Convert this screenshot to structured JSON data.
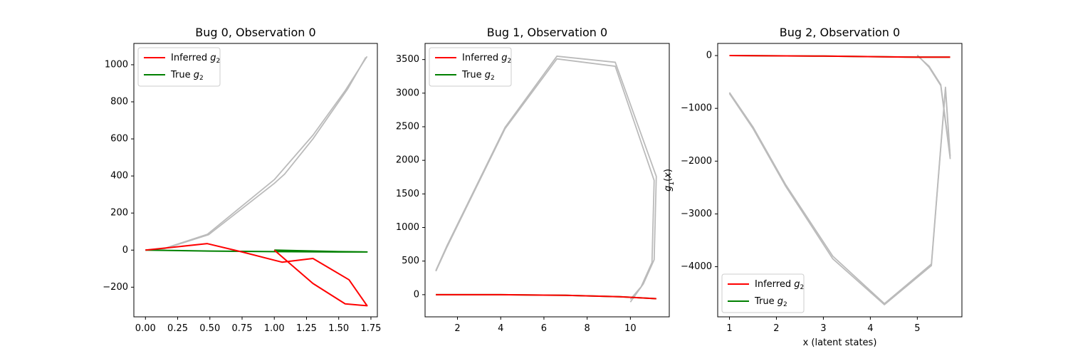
{
  "chart_data": [
    {
      "type": "line",
      "title": "Bug 0, Observation 0",
      "xlabel": "",
      "ylabel": "",
      "xlim": [
        -0.09,
        1.8
      ],
      "ylim": [
        -360,
        1115
      ],
      "xticks": [
        0.0,
        0.25,
        0.5,
        0.75,
        1.0,
        1.25,
        1.5,
        1.75
      ],
      "xtick_labels": [
        "0.00",
        "0.25",
        "0.50",
        "0.75",
        "1.00",
        "1.25",
        "1.50",
        "1.75"
      ],
      "yticks": [
        -200,
        0,
        200,
        400,
        600,
        800,
        1000
      ],
      "ytick_labels": [
        "−200",
        "0",
        "200",
        "400",
        "600",
        "800",
        "1000"
      ],
      "legend": {
        "loc": "upper left",
        "labels": [
          "Inferred g2",
          "True g2"
        ]
      },
      "grid": false,
      "series": [
        {
          "name": "Inferred g2",
          "color": "#ff0000",
          "x": [
            0.0,
            0.48,
            0.75,
            1.06,
            1.3,
            1.58,
            1.72,
            1.55,
            1.3,
            1.0
          ],
          "y": [
            0,
            35,
            -10,
            -65,
            -45,
            -160,
            -300,
            -290,
            -180,
            0
          ]
        },
        {
          "name": "True g2",
          "color": "#008000",
          "x": [
            0.0,
            0.5,
            1.0,
            1.5,
            1.72,
            1.5,
            1.0
          ],
          "y": [
            0,
            -5,
            -8,
            -10,
            -10,
            -8,
            0
          ]
        },
        {
          "name": "",
          "color": "#bbbbbb",
          "x": [
            0.0,
            0.15,
            0.48,
            1.0,
            1.3,
            1.55,
            1.72
          ],
          "y": [
            0,
            10,
            85,
            380,
            620,
            860,
            1045
          ]
        },
        {
          "name": "",
          "color": "#bbbbbb",
          "x": [
            0.0,
            0.15,
            0.49,
            1.0,
            1.08,
            1.3,
            1.57,
            1.71
          ],
          "y": [
            0,
            8,
            83,
            360,
            410,
            600,
            870,
            1040
          ]
        }
      ]
    },
    {
      "type": "line",
      "title": "Bug 1, Observation 0",
      "xlabel": "",
      "ylabel": "",
      "xlim": [
        0.5,
        11.8
      ],
      "ylim": [
        -330,
        3740
      ],
      "xticks": [
        2,
        4,
        6,
        8,
        10
      ],
      "xtick_labels": [
        "2",
        "4",
        "6",
        "8",
        "10"
      ],
      "yticks": [
        0,
        500,
        1000,
        1500,
        2000,
        2500,
        3000,
        3500
      ],
      "ytick_labels": [
        "0",
        "500",
        "1000",
        "1500",
        "2000",
        "2500",
        "3000",
        "3500"
      ],
      "legend": {
        "loc": "upper left",
        "labels": [
          "Inferred g2",
          "True g2"
        ]
      },
      "grid": false,
      "series": [
        {
          "name": "Inferred g2",
          "color": "#ff0000",
          "x": [
            1.0,
            4.0,
            7.0,
            9.5,
            11.2
          ],
          "y": [
            0,
            0,
            -10,
            -30,
            -60
          ]
        },
        {
          "name": "True g2",
          "color": "#008000",
          "x": [
            1.0,
            4.0,
            7.0,
            9.5,
            11.2
          ],
          "y": [
            0,
            0,
            -10,
            -30,
            -60
          ]
        },
        {
          "name": "",
          "color": "#bbbbbb",
          "x": [
            1.0,
            1.5,
            4.2,
            6.6,
            9.3,
            11.2,
            11.1,
            10.6,
            10.0
          ],
          "y": [
            360,
            720,
            2490,
            3550,
            3460,
            1760,
            520,
            160,
            -110
          ]
        },
        {
          "name": "",
          "color": "#bbbbbb",
          "x": [
            1.0,
            1.5,
            4.2,
            6.6,
            9.3,
            11.1,
            11.0,
            10.5,
            10.0
          ],
          "y": [
            350,
            700,
            2470,
            3510,
            3400,
            1700,
            480,
            120,
            -70
          ]
        }
      ]
    },
    {
      "type": "line",
      "title": "Bug 2, Observation 0",
      "xlabel": "x (latent states)",
      "ylabel": "g1(x)",
      "xlim": [
        0.75,
        5.95
      ],
      "ylim": [
        -4950,
        230
      ],
      "xticks": [
        1,
        2,
        3,
        4,
        5
      ],
      "xtick_labels": [
        "1",
        "2",
        "3",
        "4",
        "5"
      ],
      "yticks": [
        -4000,
        -3000,
        -2000,
        -1000,
        0
      ],
      "ytick_labels": [
        "−4000",
        "−3000",
        "−2000",
        "−1000",
        "0"
      ],
      "legend": {
        "loc": "lower left",
        "labels": [
          "Inferred g2",
          "True g2"
        ]
      },
      "grid": false,
      "series": [
        {
          "name": "Inferred g2",
          "color": "#ff0000",
          "x": [
            1.0,
            3.0,
            5.0,
            5.7
          ],
          "y": [
            0,
            -10,
            -30,
            -30
          ]
        },
        {
          "name": "True g2",
          "color": "#008000",
          "x": [
            1.0,
            3.0,
            5.0,
            5.7
          ],
          "y": [
            0,
            -10,
            -30,
            -30
          ]
        },
        {
          "name": "",
          "color": "#bbbbbb",
          "x": [
            1.0,
            1.5,
            2.2,
            3.2,
            4.3,
            5.3,
            5.6,
            5.7,
            5.5,
            5.25,
            5.0
          ],
          "y": [
            -700,
            -1350,
            -2450,
            -3800,
            -4700,
            -3950,
            -600,
            -1900,
            -550,
            -200,
            0
          ]
        },
        {
          "name": "",
          "color": "#bbbbbb",
          "x": [
            1.0,
            1.5,
            2.2,
            3.2,
            4.3,
            5.3,
            5.6,
            5.7,
            5.5,
            5.25,
            5.0
          ],
          "y": [
            -720,
            -1380,
            -2480,
            -3850,
            -4720,
            -3980,
            -630,
            -1950,
            -570,
            -220,
            10
          ]
        }
      ]
    }
  ]
}
